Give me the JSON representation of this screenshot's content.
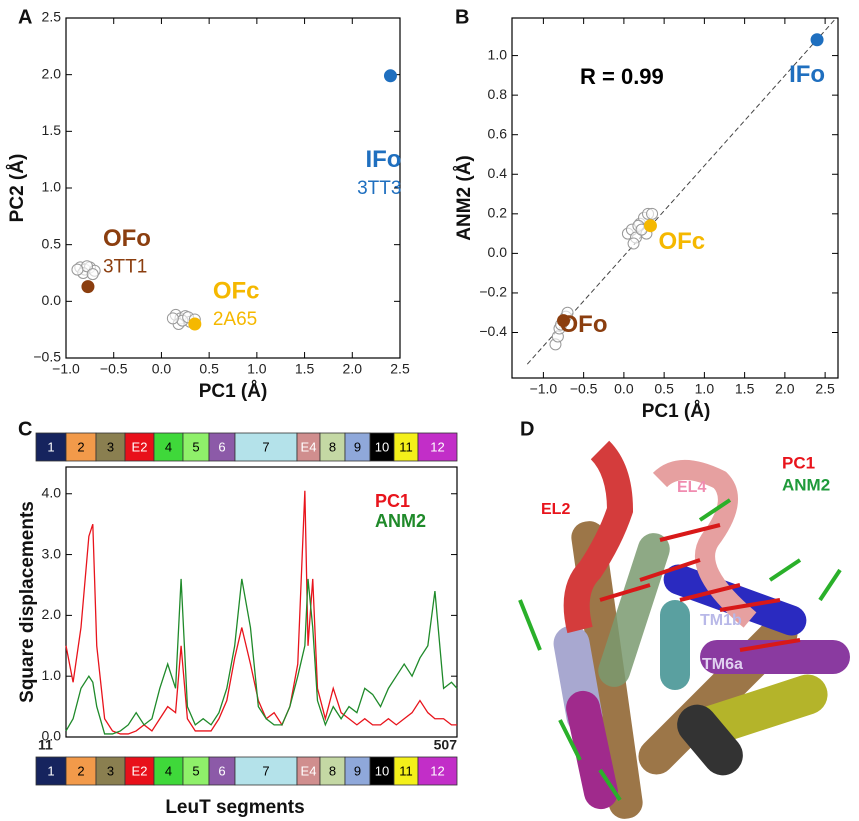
{
  "chart_data": [
    {
      "type": "scatter",
      "panel": "A",
      "xlabel": "PC1 (Å)",
      "ylabel": "PC2 (Å)",
      "xlim": [
        -1.0,
        2.5
      ],
      "ylim": [
        -0.5,
        2.5
      ],
      "xticks": [
        {
          "value": -1.0,
          "label": "−1.0"
        },
        {
          "value": -0.5,
          "label": "−0.5"
        },
        {
          "value": 0.0,
          "label": "0.0"
        },
        {
          "value": 0.5,
          "label": "0.5"
        },
        {
          "value": 1.0,
          "label": "1.0"
        },
        {
          "value": 1.5,
          "label": "1.5"
        },
        {
          "value": 2.0,
          "label": "2.0"
        },
        {
          "value": 2.5,
          "label": "2.5"
        }
      ],
      "yticks": [
        {
          "value": -0.5,
          "label": "−0.5"
        },
        {
          "value": 0.0,
          "label": "0.0"
        },
        {
          "value": 0.5,
          "label": "0.5"
        },
        {
          "value": 1.0,
          "label": "1.0"
        },
        {
          "value": 1.5,
          "label": "1.5"
        },
        {
          "value": 2.0,
          "label": "2.0"
        },
        {
          "value": 2.5,
          "label": "2.5"
        }
      ],
      "series": [
        {
          "color": "#999999",
          "x": [
            -0.85,
            -0.8,
            -0.75,
            -0.7,
            -0.82,
            -0.78,
            -0.72,
            -0.88,
            0.15,
            0.2,
            0.25,
            0.3,
            0.18,
            0.22,
            0.28,
            0.35,
            0.12
          ],
          "y": [
            0.3,
            0.28,
            0.3,
            0.27,
            0.25,
            0.31,
            0.24,
            0.28,
            -0.12,
            -0.15,
            -0.13,
            -0.18,
            -0.2,
            -0.17,
            -0.14,
            -0.16,
            -0.15
          ]
        },
        {
          "name": "IFo",
          "label": "3TT3",
          "color": "#1f6fbf",
          "x": [
            2.4
          ],
          "y": [
            1.99
          ]
        },
        {
          "name": "OFo",
          "label": "3TT1",
          "color": "#8b3e0f",
          "x": [
            -0.77
          ],
          "y": [
            0.13
          ]
        },
        {
          "name": "OFc",
          "label": "2A65",
          "color": "#f5b800",
          "x": [
            0.35
          ],
          "y": [
            -0.2
          ]
        }
      ]
    },
    {
      "type": "scatter",
      "panel": "B",
      "xlabel": "PC1 (Å)",
      "ylabel": "ANM2 (Å)",
      "annotation": "R = 0.99",
      "xlim": [
        -1.39,
        2.66
      ],
      "ylim": [
        -0.63,
        1.19
      ],
      "xticks": [
        {
          "value": -1.0,
          "label": "−1.0"
        },
        {
          "value": -0.5,
          "label": "−0.5"
        },
        {
          "value": 0.0,
          "label": "0.0"
        },
        {
          "value": 0.5,
          "label": "0.5"
        },
        {
          "value": 1.0,
          "label": "1.0"
        },
        {
          "value": 1.5,
          "label": "1.5"
        },
        {
          "value": 2.0,
          "label": "2.0"
        },
        {
          "value": 2.5,
          "label": "2.5"
        }
      ],
      "yticks": [
        {
          "value": -0.4,
          "label": "−0.4"
        },
        {
          "value": -0.2,
          "label": "−0.2"
        },
        {
          "value": 0.0,
          "label": "0.0"
        },
        {
          "value": 0.2,
          "label": "0.2"
        },
        {
          "value": 0.4,
          "label": "0.4"
        },
        {
          "value": 0.6,
          "label": "0.6"
        },
        {
          "value": 0.8,
          "label": "0.8"
        },
        {
          "value": 1.0,
          "label": "1.0"
        }
      ],
      "fit_line": {
        "x": [
          -1.2,
          2.66
        ],
        "y": [
          -0.56,
          1.2
        ]
      },
      "series": [
        {
          "color": "#999999",
          "x": [
            -0.85,
            -0.82,
            -0.8,
            -0.78,
            -0.72,
            -0.7,
            0.05,
            0.1,
            0.15,
            0.2,
            0.25,
            0.3,
            0.35,
            0.12,
            0.18,
            0.28,
            0.22
          ],
          "y": [
            -0.46,
            -0.42,
            -0.38,
            -0.36,
            -0.32,
            -0.3,
            0.1,
            0.12,
            0.08,
            0.15,
            0.18,
            0.2,
            0.2,
            0.05,
            0.14,
            0.1,
            0.12
          ]
        },
        {
          "name": "IFo",
          "color": "#1f6fbf",
          "x": [
            2.4
          ],
          "y": [
            1.08
          ]
        },
        {
          "name": "OFc",
          "color": "#f5b800",
          "x": [
            0.33
          ],
          "y": [
            0.14
          ]
        },
        {
          "name": "OFo",
          "color": "#8b3e0f",
          "x": [
            -0.75
          ],
          "y": [
            -0.34
          ]
        }
      ]
    },
    {
      "type": "line",
      "panel": "C",
      "xlabel": "LeuT segments",
      "ylabel": "Square displacements",
      "xlim": [
        11,
        507
      ],
      "ylim": [
        0,
        4.44
      ],
      "xticks": [
        11,
        507
      ],
      "yticks": [
        {
          "value": 0,
          "label": "0.0"
        },
        {
          "value": 1,
          "label": "1.0"
        },
        {
          "value": 2,
          "label": "2.0"
        },
        {
          "value": 3,
          "label": "3.0"
        },
        {
          "value": 4,
          "label": "4.0"
        }
      ],
      "segments": [
        {
          "label": "1",
          "color": "#16245e"
        },
        {
          "label": "2",
          "color": "#f29a4a"
        },
        {
          "label": "3",
          "color": "#8a7f50"
        },
        {
          "label": "E2",
          "color": "#e8101a"
        },
        {
          "label": "4",
          "color": "#3fd83a"
        },
        {
          "label": "5",
          "color": "#8ff06a"
        },
        {
          "label": "6",
          "color": "#8c5aa8"
        },
        {
          "label": "7",
          "color": "#b4e2ea"
        },
        {
          "label": "E4",
          "color": "#d08e8e"
        },
        {
          "label": "8",
          "color": "#c4d8a4"
        },
        {
          "label": "9",
          "color": "#8fa8da"
        },
        {
          "label": "10",
          "color": "#000000"
        },
        {
          "label": "11",
          "color": "#f4f01a"
        },
        {
          "label": "12",
          "color": "#c22ec8"
        }
      ],
      "x": [
        11,
        20,
        30,
        40,
        45,
        50,
        60,
        70,
        80,
        90,
        100,
        110,
        120,
        130,
        140,
        150,
        157,
        165,
        175,
        185,
        195,
        205,
        215,
        225,
        234,
        245,
        255,
        265,
        275,
        285,
        295,
        305,
        314,
        318,
        324,
        330,
        340,
        350,
        360,
        370,
        380,
        390,
        400,
        410,
        420,
        430,
        440,
        450,
        460,
        470,
        479,
        490,
        500,
        507
      ],
      "series": [
        {
          "name": "PC1",
          "color": "#e8141c",
          "values": [
            1.5,
            0.9,
            1.8,
            3.3,
            3.5,
            1.5,
            0.3,
            0.1,
            0.05,
            0.05,
            0.1,
            0.2,
            0.1,
            0.3,
            0.5,
            0.4,
            1.5,
            0.3,
            0.1,
            0.1,
            0.1,
            0.3,
            0.6,
            1.3,
            1.8,
            1.2,
            0.6,
            0.3,
            0.4,
            0.2,
            0.5,
            1.2,
            4.05,
            1.5,
            2.6,
            0.8,
            0.3,
            0.8,
            0.4,
            0.3,
            0.2,
            0.3,
            0.2,
            0.2,
            0.3,
            0.2,
            0.3,
            0.4,
            0.6,
            0.4,
            0.3,
            0.3,
            0.2,
            0.2
          ]
        },
        {
          "name": "ANM2",
          "color": "#1f8a2a",
          "values": [
            0.1,
            0.3,
            0.8,
            1.0,
            0.9,
            0.5,
            0.05,
            0.05,
            0.1,
            0.2,
            0.4,
            0.2,
            0.3,
            0.8,
            1.2,
            0.8,
            2.6,
            0.5,
            0.2,
            0.3,
            0.2,
            0.4,
            0.8,
            1.5,
            2.6,
            1.8,
            0.5,
            0.3,
            0.2,
            0.2,
            0.5,
            1.0,
            1.5,
            2.6,
            1.8,
            0.6,
            0.2,
            0.5,
            0.3,
            0.5,
            0.4,
            0.8,
            0.7,
            0.5,
            0.8,
            1.0,
            1.2,
            1.0,
            1.3,
            1.5,
            2.4,
            0.8,
            0.9,
            0.8
          ]
        }
      ]
    }
  ],
  "panel_d": {
    "panel": "D",
    "legend": [
      {
        "text": "PC1",
        "color": "#e8141c"
      },
      {
        "text": "ANM2",
        "color": "#1f9a3a"
      }
    ],
    "labels": [
      {
        "text": "EL2",
        "color": "#e8141c"
      },
      {
        "text": "EL4",
        "color": "#f08cb0"
      },
      {
        "text": "TM1b",
        "color": "#b8b8e8"
      },
      {
        "text": "TM6a",
        "color": "#e0d0f0"
      }
    ]
  }
}
